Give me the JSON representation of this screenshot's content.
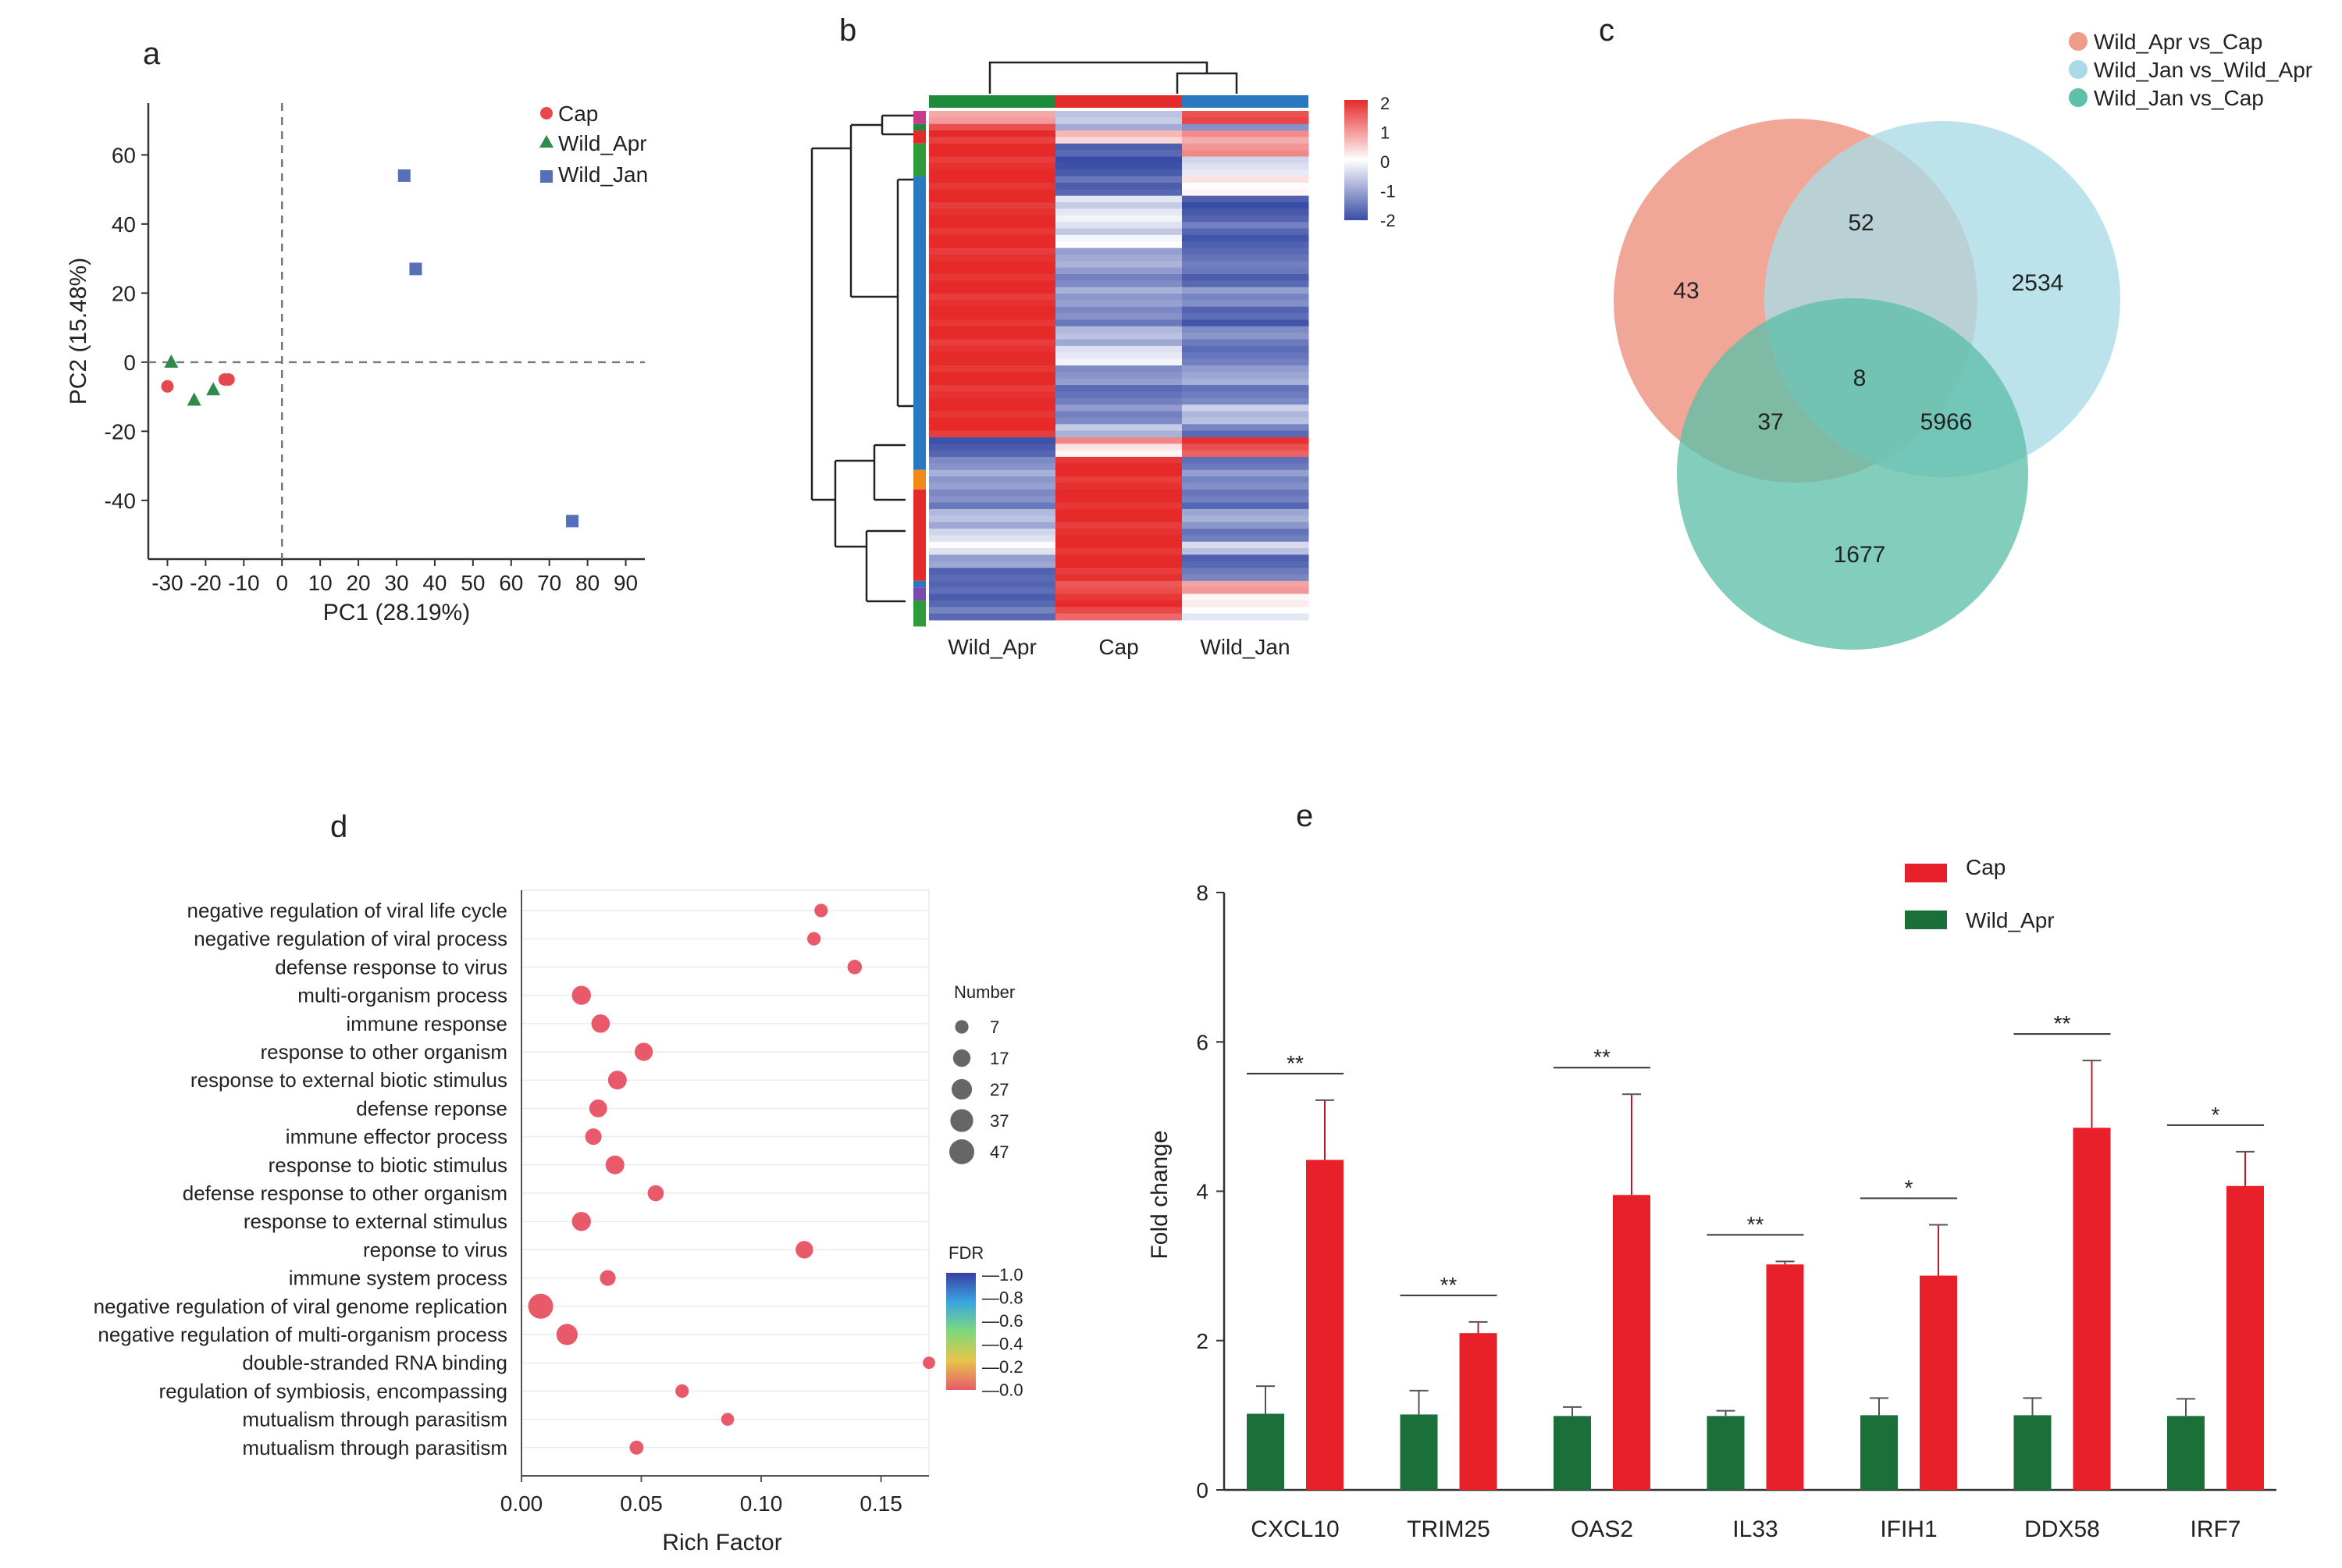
{
  "figure": {
    "panel_labels": [
      "a",
      "b",
      "c",
      "d",
      "e"
    ]
  },
  "chart_data": [
    {
      "panel": "a",
      "type": "scatter",
      "xlabel": "PC1 (28.19%)",
      "ylabel": "PC2 (15.48%)",
      "xlim": [
        -35,
        95
      ],
      "ylim": [
        -57,
        75
      ],
      "xticks": [
        -30,
        -20,
        -10,
        0,
        10,
        20,
        30,
        40,
        50,
        60,
        70,
        80,
        90
      ],
      "xtick_labels": [
        "-30",
        "-20",
        "-10",
        "0",
        "10",
        "20",
        "30",
        "40",
        "50",
        "60",
        "70",
        "80",
        "90"
      ],
      "yticks": [
        -40,
        -20,
        0,
        20,
        40,
        60
      ],
      "ytick_labels": [
        "-40",
        "-20",
        "0",
        "20",
        "40",
        "60"
      ],
      "series": [
        {
          "name": "Cap",
          "marker": "circle",
          "color": "#e8474f",
          "points": [
            [
              -30,
              -7
            ],
            [
              -14,
              -5
            ],
            [
              -15,
              -5
            ]
          ]
        },
        {
          "name": "Wild_Apr",
          "marker": "triangle",
          "color": "#2e8b4a",
          "points": [
            [
              -29,
              0
            ],
            [
              -23,
              -11
            ],
            [
              -18,
              -8
            ]
          ]
        },
        {
          "name": "Wild_Jan",
          "marker": "square",
          "color": "#5570b8",
          "points": [
            [
              32,
              54
            ],
            [
              35,
              27
            ],
            [
              76,
              -46
            ]
          ]
        }
      ],
      "reference_lines": {
        "x": 0,
        "y": 0
      }
    },
    {
      "panel": "b",
      "type": "heatmap",
      "columns": [
        "Wild_Apr",
        "Cap",
        "Wild_Jan"
      ],
      "column_colors": [
        "#1e8a3c",
        "#e32b2b",
        "#2a78c0"
      ],
      "colorbar": {
        "min": -2,
        "max": 2,
        "ticks": [
          "2",
          "1",
          "0",
          "-1",
          "-2"
        ],
        "colors": [
          "#e62a2a",
          "#ffffff",
          "#3a4da6"
        ]
      },
      "row_blocks": [
        {
          "rows": 2,
          "values": [
            1.0,
            -0.5,
            1.8
          ]
        },
        {
          "rows": 1,
          "values": [
            1.6,
            -1.0,
            -1.3
          ]
        },
        {
          "rows": 2,
          "values": [
            1.9,
            0.5,
            0.9
          ]
        },
        {
          "rows": 2,
          "values": [
            2.0,
            -1.8,
            1.0
          ]
        },
        {
          "rows": 3,
          "values": [
            2.0,
            -1.9,
            -0.3
          ]
        },
        {
          "rows": 3,
          "values": [
            2.0,
            -1.7,
            0.1
          ]
        },
        {
          "rows": 2,
          "values": [
            2.0,
            -0.4,
            -1.9
          ]
        },
        {
          "rows": 2,
          "values": [
            2.0,
            -0.2,
            -1.8
          ]
        },
        {
          "rows": 2,
          "values": [
            2.0,
            -0.5,
            -1.6
          ]
        },
        {
          "rows": 2,
          "values": [
            2.0,
            -0.1,
            -1.9
          ]
        },
        {
          "rows": 3,
          "values": [
            2.0,
            -0.9,
            -1.5
          ]
        },
        {
          "rows": 3,
          "values": [
            2.0,
            -1.3,
            -1.7
          ]
        },
        {
          "rows": 3,
          "values": [
            2.0,
            -1.0,
            -1.2
          ]
        },
        {
          "rows": 3,
          "values": [
            2.0,
            -1.4,
            -1.8
          ]
        },
        {
          "rows": 3,
          "values": [
            2.0,
            -0.8,
            -1.3
          ]
        },
        {
          "rows": 3,
          "values": [
            2.0,
            -0.3,
            -1.6
          ]
        },
        {
          "rows": 3,
          "values": [
            2.0,
            -1.2,
            -1.0
          ]
        },
        {
          "rows": 3,
          "values": [
            2.0,
            -1.5,
            -1.4
          ]
        },
        {
          "rows": 3,
          "values": [
            2.0,
            -1.3,
            -0.7
          ]
        },
        {
          "rows": 2,
          "values": [
            2.0,
            -0.7,
            -1.5
          ]
        },
        {
          "rows": 1,
          "values": [
            -1.9,
            1.2,
            2.0
          ]
        },
        {
          "rows": 1,
          "values": [
            -1.9,
            0.2,
            1.6
          ]
        },
        {
          "rows": 1,
          "values": [
            -1.9,
            -0.1,
            1.3
          ]
        },
        {
          "rows": 2,
          "values": [
            -1.2,
            2.0,
            -1.5
          ]
        },
        {
          "rows": 3,
          "values": [
            -1.0,
            2.0,
            -1.2
          ]
        },
        {
          "rows": 3,
          "values": [
            -1.4,
            2.0,
            -1.6
          ]
        },
        {
          "rows": 3,
          "values": [
            -0.8,
            2.0,
            -1.0
          ]
        },
        {
          "rows": 2,
          "values": [
            -0.4,
            2.0,
            -1.5
          ]
        },
        {
          "rows": 2,
          "values": [
            -0.2,
            2.0,
            -0.6
          ]
        },
        {
          "rows": 2,
          "values": [
            -1.1,
            2.0,
            -1.8
          ]
        },
        {
          "rows": 2,
          "values": [
            -1.6,
            2.0,
            -1.3
          ]
        },
        {
          "rows": 2,
          "values": [
            -1.8,
            1.5,
            0.8
          ]
        },
        {
          "rows": 2,
          "values": [
            -1.7,
            2.0,
            0.2
          ]
        },
        {
          "rows": 2,
          "values": [
            -1.5,
            1.6,
            -0.1
          ]
        }
      ],
      "row_groups": [
        {
          "rows": 2,
          "color": "#c93a8e"
        },
        {
          "rows": 1,
          "color": "#1e8a3c"
        },
        {
          "rows": 2,
          "color": "#e32b2b"
        },
        {
          "rows": 5,
          "color": "#2e9a3a"
        },
        {
          "rows": 45,
          "color": "#2a78c0"
        },
        {
          "rows": 3,
          "color": "#f08a1a"
        },
        {
          "rows": 14,
          "color": "#e32b2b"
        },
        {
          "rows": 1,
          "color": "#2a78c0"
        },
        {
          "rows": 2,
          "color": "#7a4ab0"
        },
        {
          "rows": 4,
          "color": "#2e9a3a"
        }
      ]
    },
    {
      "panel": "c",
      "type": "venn",
      "sets": [
        {
          "name": "Wild_Apr vs_Cap",
          "color": "#ef9b8a"
        },
        {
          "name": "Wild_Jan vs_Wild_Apr",
          "color": "#a9dbe6"
        },
        {
          "name": "Wild_Jan vs_Cap",
          "color": "#76c9b7"
        }
      ],
      "regions": {
        "only_A": "43",
        "only_B": "2534",
        "only_C": "1677",
        "A_B": "52",
        "A_C": "37",
        "B_C": "5966",
        "A_B_C": "8"
      }
    },
    {
      "panel": "d",
      "type": "scatter",
      "xlabel": "Rich Factor",
      "xlim": [
        0.0,
        0.17
      ],
      "xtick_labels": [
        "0.00",
        "0.05",
        "0.10",
        "0.15"
      ],
      "xticks": [
        0.0,
        0.05,
        0.1,
        0.15
      ],
      "terms": [
        {
          "label": "negative regulation of viral life cycle",
          "rich": 0.125,
          "number": 7,
          "fdr": 0.0
        },
        {
          "label": "negative regulation of viral process",
          "rich": 0.122,
          "number": 7,
          "fdr": 0.0
        },
        {
          "label": "defense response to virus",
          "rich": 0.139,
          "number": 9,
          "fdr": 0.0
        },
        {
          "label": "multi-organism process",
          "rich": 0.025,
          "number": 22,
          "fdr": 0.0
        },
        {
          "label": "immune response",
          "rich": 0.033,
          "number": 20,
          "fdr": 0.0
        },
        {
          "label": "response to other organism",
          "rich": 0.051,
          "number": 19,
          "fdr": 0.0
        },
        {
          "label": "response to external biotic stimulus",
          "rich": 0.04,
          "number": 21,
          "fdr": 0.0
        },
        {
          "label": "defense reponse",
          "rich": 0.032,
          "number": 18,
          "fdr": 0.0
        },
        {
          "label": "immune effector process",
          "rich": 0.03,
          "number": 14,
          "fdr": 0.0
        },
        {
          "label": "response to biotic stimulus",
          "rich": 0.039,
          "number": 21,
          "fdr": 0.0
        },
        {
          "label": "defense response to other organism",
          "rich": 0.056,
          "number": 13,
          "fdr": 0.0
        },
        {
          "label": "response to external stimulus",
          "rich": 0.025,
          "number": 22,
          "fdr": 0.0
        },
        {
          "label": "reponse to virus",
          "rich": 0.118,
          "number": 17,
          "fdr": 0.0
        },
        {
          "label": "immune system process",
          "rich": 0.036,
          "number": 12,
          "fdr": 0.0
        },
        {
          "label": "negative regulation of viral genome replication",
          "rich": 0.008,
          "number": 47,
          "fdr": 0.0
        },
        {
          "label": "negative regulation of multi-organism process",
          "rich": 0.019,
          "number": 30,
          "fdr": 0.0
        },
        {
          "label": "double-stranded RNA binding",
          "rich": 0.17,
          "number": 5,
          "fdr": 0.0
        },
        {
          "label": "regulation of symbiosis, encompassing",
          "rich": 0.067,
          "number": 7,
          "fdr": 0.0
        },
        {
          "label": "mutualism through parasitism",
          "rich": 0.086,
          "number": 6,
          "fdr": 0.0
        },
        {
          "label": "mutualism through parasitism",
          "rich": 0.048,
          "number": 8,
          "fdr": 0.0
        }
      ],
      "size_legend": {
        "title": "Number",
        "values": [
          "7",
          "17",
          "27",
          "37",
          "47"
        ]
      },
      "color_legend": {
        "title": "FDR",
        "ticks": [
          "1.0",
          "0.8",
          "0.6",
          "0.4",
          "0.2",
          "0.0"
        ]
      }
    },
    {
      "panel": "e",
      "type": "bar",
      "ylabel": "Fold change",
      "ylim": [
        0,
        8
      ],
      "yticks": [
        "0",
        "2",
        "4",
        "6",
        "8"
      ],
      "categories": [
        "CXCL10",
        "TRIM25",
        "OAS2",
        "IL33",
        "IFIH1",
        "DDX58",
        "IRF7"
      ],
      "series": [
        {
          "name": "Wild_Apr",
          "color": "#1a7038",
          "values": [
            1.02,
            1.01,
            0.99,
            0.99,
            1.0,
            1.0,
            0.99
          ],
          "errors": [
            0.37,
            0.32,
            0.12,
            0.07,
            0.23,
            0.23,
            0.23
          ]
        },
        {
          "name": "Cap",
          "color": "#e8202a",
          "values": [
            4.42,
            2.1,
            3.95,
            3.02,
            2.87,
            4.85,
            4.07
          ],
          "errors": [
            0.8,
            0.15,
            1.35,
            0.04,
            0.68,
            0.9,
            0.46
          ]
        }
      ],
      "significance": [
        "**",
        "**",
        "**",
        "**",
        "*",
        "**",
        "*"
      ],
      "legend": [
        "Cap",
        "Wild_Apr"
      ]
    }
  ]
}
